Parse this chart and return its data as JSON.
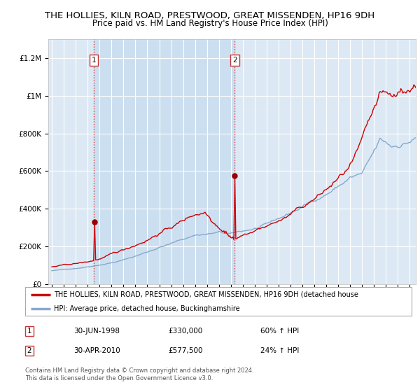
{
  "title": "THE HOLLIES, KILN ROAD, PRESTWOOD, GREAT MISSENDEN, HP16 9DH",
  "subtitle": "Price paid vs. HM Land Registry's House Price Index (HPI)",
  "title_fontsize": 9.5,
  "subtitle_fontsize": 8.5,
  "background_color": "#ffffff",
  "plot_bg_color": "#dce9f5",
  "span_color": "#ccdff0",
  "grid_color": "#ffffff",
  "hpi_line_color": "#88aacc",
  "property_line_color": "#cc0000",
  "purchase1_date": 1998.5,
  "purchase1_price": 330000,
  "purchase2_date": 2010.33,
  "purchase2_price": 577500,
  "ylim": [
    0,
    1300000
  ],
  "xlim_start": 1994.7,
  "xlim_end": 2025.5,
  "ytick_labels": [
    "£0",
    "£200K",
    "£400K",
    "£600K",
    "£800K",
    "£1M",
    "£1.2M"
  ],
  "ytick_values": [
    0,
    200000,
    400000,
    600000,
    800000,
    1000000,
    1200000
  ],
  "legend_label_property": "THE HOLLIES, KILN ROAD, PRESTWOOD, GREAT MISSENDEN, HP16 9DH (detached house",
  "legend_label_hpi": "HPI: Average price, detached house, Buckinghamshire",
  "footnote": "Contains HM Land Registry data © Crown copyright and database right 2024.\nThis data is licensed under the Open Government Licence v3.0.",
  "table_row1": [
    "1",
    "30-JUN-1998",
    "£330,000",
    "60% ↑ HPI"
  ],
  "table_row2": [
    "2",
    "30-APR-2010",
    "£577,500",
    "24% ↑ HPI"
  ]
}
